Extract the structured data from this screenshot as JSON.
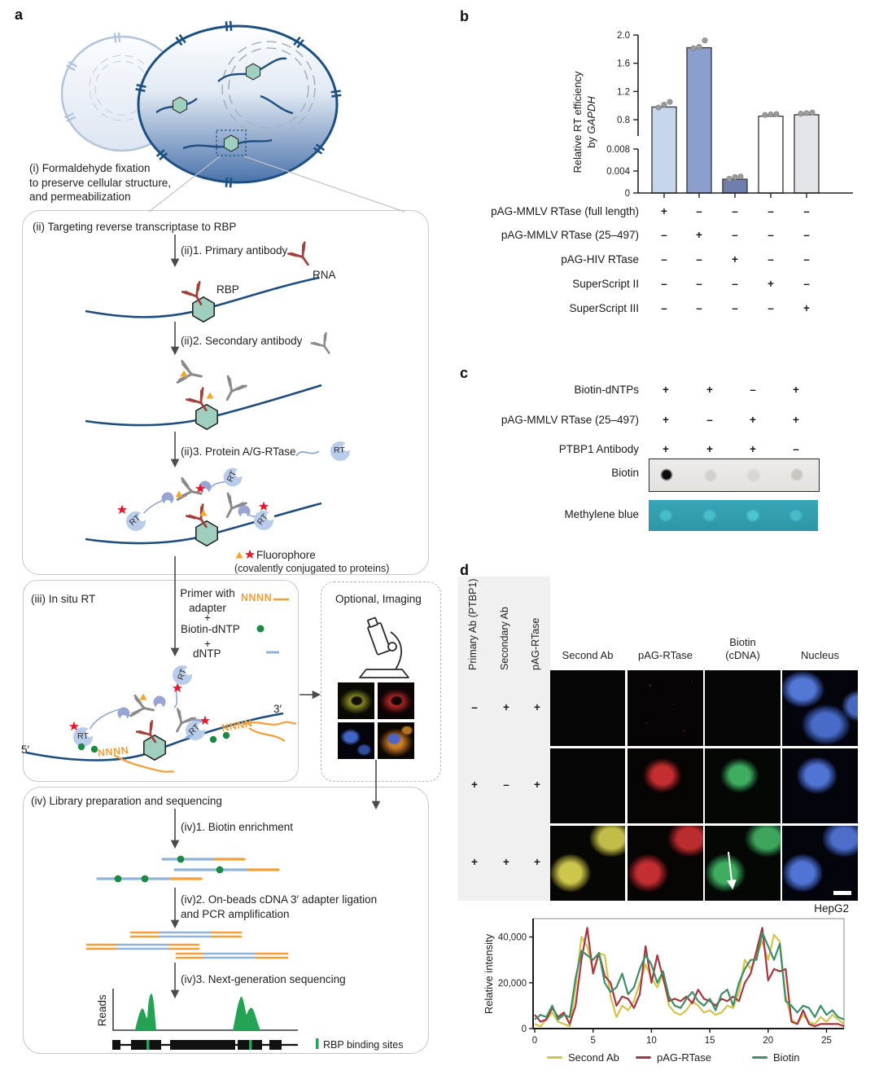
{
  "panels": {
    "a": "a",
    "b": "b",
    "c": "c",
    "d": "d"
  },
  "panel_a": {
    "step_i": "(i) Formaldehyde fixation\nto preserve cellular structure,\nand permeabilization",
    "step_ii_title": "(ii) Targeting reverse transcriptase to RBP",
    "step_ii_1": "(ii)1. Primary antibody",
    "rna_label": "RNA",
    "rbp_label": "RBP",
    "step_ii_2": "(ii)2. Secondary antibody",
    "step_ii_3": "(ii)3. Protein A/G-RTase",
    "rt_label": "RT",
    "fluorophore_label": "Fluorophore",
    "fluorophore_note": "(covalently conjugated to proteins)",
    "step_iii_title": "(iii) In situ RT",
    "primer_label": "Primer with\nadapter",
    "nnnn_label": "NNNN",
    "plus": "+",
    "biotin_dntp_label": "Biotin-dNTP",
    "dntp_label": "dNTP",
    "five_prime": "5′",
    "three_prime": "3′",
    "imaging_title": "Optional, Imaging",
    "step_iv_title": "(iv) Library preparation and sequencing",
    "step_iv_1": "(iv)1. Biotin enrichment",
    "step_iv_2": "(iv)2. On-beads cDNA 3′ adapter ligation\nand PCR amplification",
    "step_iv_3": "(iv)3. Next-generation sequencing",
    "reads_label": "Reads",
    "rbp_sites_label": "RBP binding sites"
  },
  "panel_b": {
    "rows": [
      {
        "label": "pAG-MMLV RTase (full length)",
        "signs": [
          "+",
          "–",
          "–",
          "–",
          "–"
        ]
      },
      {
        "label": "pAG-MMLV RTase (25–497)",
        "signs": [
          "–",
          "+",
          "–",
          "–",
          "–"
        ]
      },
      {
        "label": "pAG-HIV RTase",
        "signs": [
          "–",
          "–",
          "+",
          "–",
          "–"
        ]
      },
      {
        "label": "SuperScript II",
        "signs": [
          "–",
          "–",
          "–",
          "+",
          "–"
        ]
      },
      {
        "label": "SuperScript III",
        "signs": [
          "–",
          "–",
          "–",
          "–",
          "+"
        ]
      }
    ],
    "ylabel_line1": "Relative RT efficiency",
    "ylabel_by": "by ",
    "ylabel_gene": "GAPDH"
  },
  "panel_c": {
    "rows": [
      {
        "label": "Biotin-dNTPs",
        "signs": [
          "+",
          "+",
          "–",
          "+"
        ]
      },
      {
        "label": "pAG-MMLV RTase (25–497)",
        "signs": [
          "+",
          "–",
          "+",
          "+"
        ]
      },
      {
        "label": "PTBP1 Antibody",
        "signs": [
          "+",
          "+",
          "+",
          "–"
        ]
      }
    ],
    "blot1_label": "Biotin",
    "blot2_label": "Methylene blue"
  },
  "panel_d": {
    "condition_labels": [
      "Primary Ab (PTBP1)",
      "Secondary Ab",
      "pAG-RTase"
    ],
    "column_headers": [
      "Second Ab",
      "pAG-RTase",
      "Biotin\n(cDNA)",
      "Nucleus"
    ],
    "sign_rows": [
      [
        "–",
        "+",
        "+"
      ],
      [
        "+",
        "–",
        "+"
      ],
      [
        "+",
        "+",
        "+"
      ]
    ],
    "cell_line": "HepG2"
  },
  "chart_data": [
    {
      "type": "bar",
      "title": "",
      "ylabel": "Relative RT efficiency by GAPDH",
      "categories": [
        "pAG-MMLV RTase (full length)",
        "pAG-MMLV RTase (25–497)",
        "pAG-HIV RTase",
        "SuperScript II",
        "SuperScript III"
      ],
      "values": [
        0.98,
        1.82,
        0.0025,
        0.85,
        0.87
      ],
      "points": [
        [
          0.95,
          0.99,
          1.03
        ],
        [
          1.79,
          1.81,
          1.9
        ],
        [
          0.0023,
          0.0026,
          0.0027
        ],
        [
          0.845,
          0.852,
          0.858
        ],
        [
          0.862,
          0.87,
          0.878
        ]
      ],
      "bar_colors": [
        "#c6d7eb",
        "#8b9fce",
        "#6e7fae",
        "#ffffff",
        "#e3e5e8"
      ],
      "axis_break": true,
      "upper_axis": {
        "ticks": [
          2.0,
          1.6,
          1.2,
          0.8
        ],
        "tick_labels": [
          "2.0",
          "1.6",
          "1.2",
          "0.8"
        ],
        "range": [
          0.6,
          2.0
        ]
      },
      "lower_axis": {
        "ticks": [
          0.008,
          0.004,
          0
        ],
        "tick_labels": [
          "0.008",
          "0.004",
          "0"
        ],
        "range": [
          0,
          0.008
        ]
      },
      "grid": false
    },
    {
      "type": "line",
      "title": "HepG2",
      "ylabel": "Relative intensity",
      "xlabel": "",
      "xlim": [
        0,
        26.5
      ],
      "ylim": [
        0,
        48000
      ],
      "x_step": 0.5,
      "x_ticks": [
        0,
        5,
        10,
        15,
        20,
        25
      ],
      "y_ticks": [
        0,
        20000,
        40000
      ],
      "y_tick_labels": [
        "0",
        "20,000",
        "40,000"
      ],
      "legend_position": "bottom",
      "grid": false,
      "series": [
        {
          "name": "Second Ab",
          "color": "#d3c44c",
          "values": [
            2000,
            1000,
            4000,
            7000,
            3000,
            2000,
            1000,
            18000,
            40000,
            36000,
            25000,
            33000,
            32000,
            14000,
            5000,
            10000,
            8000,
            12000,
            20000,
            28000,
            22000,
            18000,
            24000,
            10000,
            7000,
            6000,
            8000,
            12000,
            10000,
            7000,
            8000,
            6000,
            7000,
            10000,
            9000,
            16000,
            30000,
            26000,
            32000,
            38000,
            30000,
            41000,
            38000,
            14000,
            4000,
            2000,
            6000,
            3000,
            2000,
            5000,
            3000,
            6000,
            4000,
            2000
          ]
        },
        {
          "name": "pAG-RTase",
          "color": "#a93540",
          "values": [
            6000,
            3000,
            4000,
            9000,
            5000,
            7000,
            2000,
            10000,
            30000,
            44000,
            24000,
            33000,
            23000,
            20000,
            10000,
            14000,
            13000,
            9000,
            15000,
            36000,
            20000,
            32000,
            22000,
            12000,
            13000,
            12000,
            14000,
            11000,
            17000,
            13000,
            12000,
            10000,
            13000,
            12000,
            14000,
            12000,
            20000,
            24000,
            34000,
            44000,
            21000,
            26000,
            25000,
            26000,
            3000,
            2000,
            8000,
            2000,
            1000,
            2000,
            2000,
            2000,
            2000,
            1000
          ]
        },
        {
          "name": "Biotin",
          "color": "#3e8e66",
          "values": [
            4000,
            6000,
            5000,
            10000,
            4000,
            6000,
            5000,
            22000,
            34000,
            32000,
            30000,
            33000,
            20000,
            16000,
            18000,
            24000,
            15000,
            18000,
            26000,
            32000,
            28000,
            20000,
            25000,
            14000,
            10000,
            9000,
            13000,
            16000,
            12000,
            10000,
            13000,
            8000,
            15000,
            17000,
            10000,
            20000,
            26000,
            30000,
            30000,
            42000,
            36000,
            30000,
            37000,
            12000,
            10000,
            7000,
            10000,
            9000,
            5000,
            10000,
            6000,
            8000,
            5000,
            4000
          ]
        }
      ]
    }
  ]
}
